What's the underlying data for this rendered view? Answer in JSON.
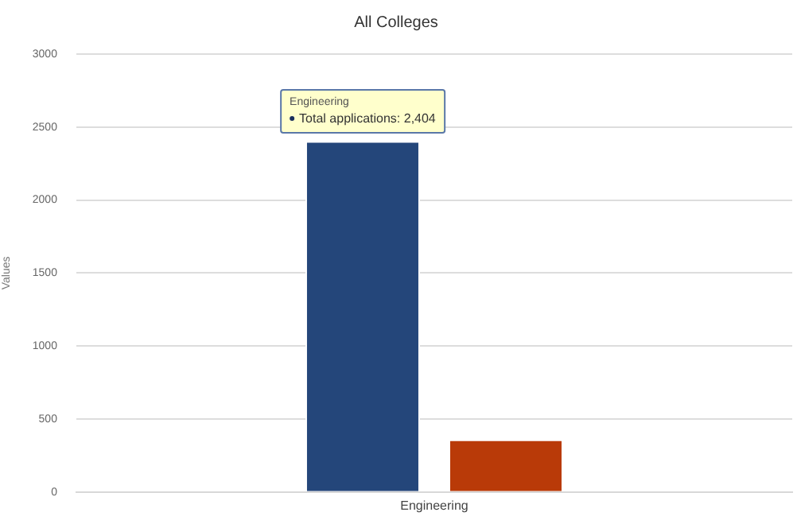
{
  "chart_data": {
    "type": "bar",
    "title": "All Colleges",
    "ylabel": "Values",
    "categories": [
      "Engineering"
    ],
    "series": [
      {
        "color": "#24467a",
        "values": [
          2404
        ]
      },
      {
        "color": "#b93a08",
        "values": [
          360
        ]
      }
    ],
    "ylim": [
      0,
      3000
    ],
    "yticks": [
      0,
      500,
      1000,
      1500,
      2000,
      2500,
      3000
    ],
    "grid": "y",
    "legend": false,
    "annotations": [
      "Engineering",
      "Total applications: 2,404"
    ]
  }
}
